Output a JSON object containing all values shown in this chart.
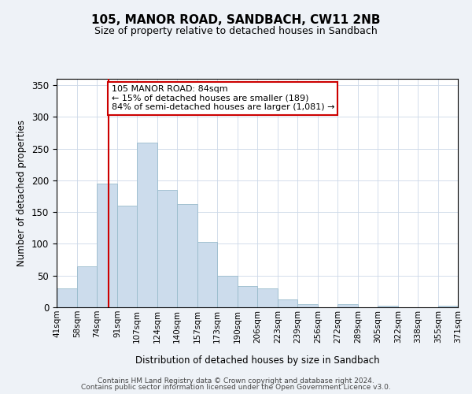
{
  "title": "105, MANOR ROAD, SANDBACH, CW11 2NB",
  "subtitle": "Size of property relative to detached houses in Sandbach",
  "xlabel": "Distribution of detached houses by size in Sandbach",
  "ylabel": "Number of detached properties",
  "bin_edges": [
    41,
    58,
    74,
    91,
    107,
    124,
    140,
    157,
    173,
    190,
    206,
    223,
    239,
    256,
    272,
    289,
    305,
    322,
    338,
    355,
    371
  ],
  "bin_labels": [
    "41sqm",
    "58sqm",
    "74sqm",
    "91sqm",
    "107sqm",
    "124sqm",
    "140sqm",
    "157sqm",
    "173sqm",
    "190sqm",
    "206sqm",
    "223sqm",
    "239sqm",
    "256sqm",
    "272sqm",
    "289sqm",
    "305sqm",
    "322sqm",
    "338sqm",
    "355sqm",
    "371sqm"
  ],
  "counts": [
    30,
    65,
    195,
    160,
    260,
    185,
    163,
    103,
    50,
    33,
    30,
    12,
    5,
    0,
    5,
    0,
    2,
    0,
    0,
    2
  ],
  "bar_color": "#ccdcec",
  "bar_edge_color": "#99bbcc",
  "property_line_x": 84,
  "property_line_color": "#cc0000",
  "annotation_line1": "105 MANOR ROAD: 84sqm",
  "annotation_line2": "← 15% of detached houses are smaller (189)",
  "annotation_line3": "84% of semi-detached houses are larger (1,081) →",
  "annotation_box_color": "#cc0000",
  "ylim": [
    0,
    360
  ],
  "yticks": [
    0,
    50,
    100,
    150,
    200,
    250,
    300,
    350
  ],
  "background_color": "#eef2f7",
  "plot_bg_color": "#ffffff",
  "grid_color": "#ccd8e8",
  "footer_line1": "Contains HM Land Registry data © Crown copyright and database right 2024.",
  "footer_line2": "Contains public sector information licensed under the Open Government Licence v3.0."
}
